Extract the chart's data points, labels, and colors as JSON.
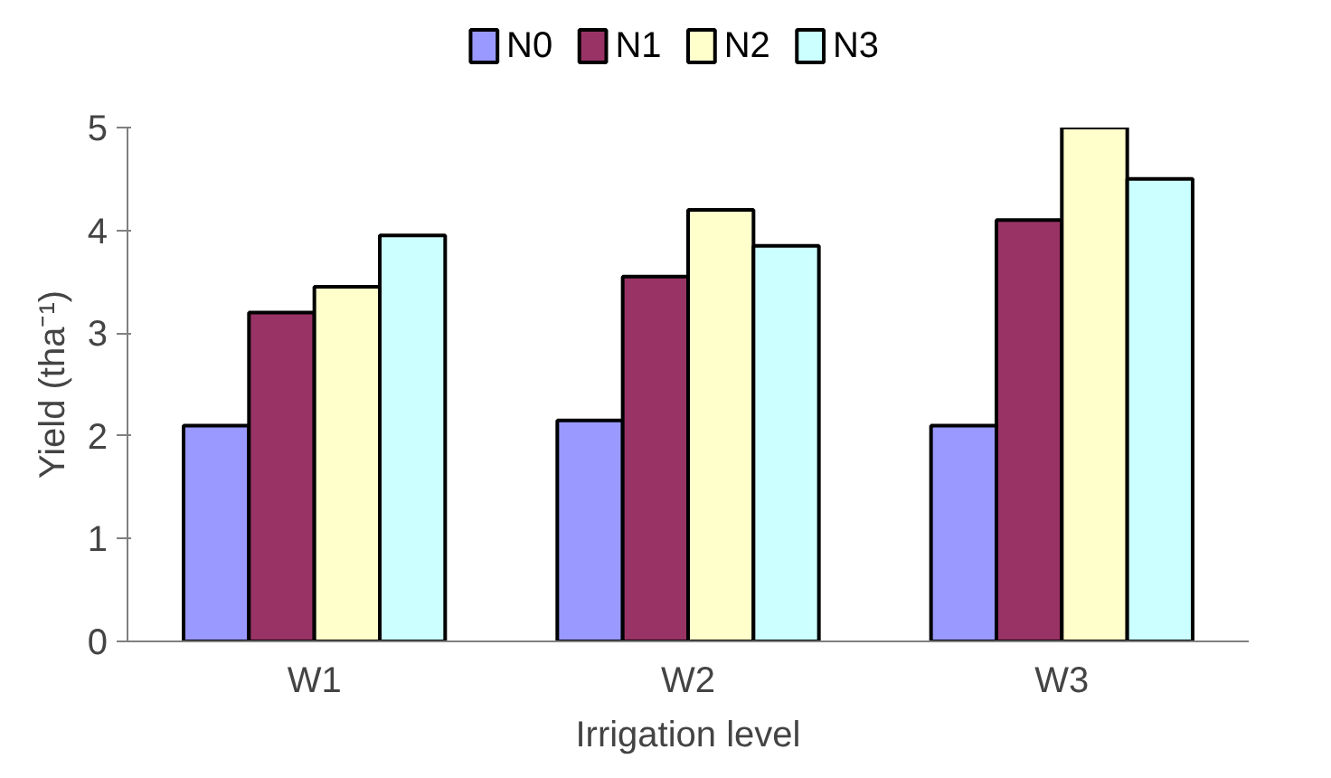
{
  "chart_data": {
    "type": "bar",
    "xlabel": "Irrigation level",
    "ylabel": "Yield (tha⁻¹)",
    "categories": [
      "W1",
      "W2",
      "W3"
    ],
    "series": [
      {
        "name": "N0",
        "color": "#9999ff",
        "values": [
          2.1,
          2.15,
          2.1
        ]
      },
      {
        "name": "N1",
        "color": "#993366",
        "values": [
          3.2,
          3.55,
          4.1
        ]
      },
      {
        "name": "N2",
        "color": "#ffffcc",
        "values": [
          3.45,
          4.2,
          5.0
        ]
      },
      {
        "name": "N3",
        "color": "#ccffff",
        "values": [
          3.95,
          3.85,
          4.5
        ]
      }
    ],
    "ylim": [
      0,
      5
    ],
    "yticks": [
      0,
      1,
      2,
      3,
      4,
      5
    ],
    "grid": false,
    "legend": "top"
  }
}
